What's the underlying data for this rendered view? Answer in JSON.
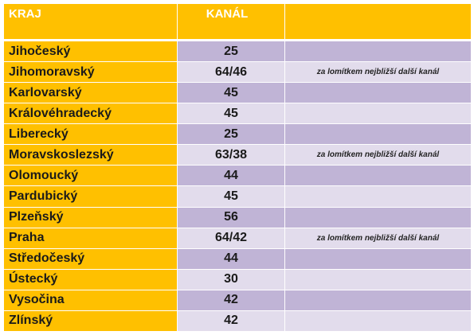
{
  "header": {
    "kraj": "KRAJ",
    "kanal": "KANÁL",
    "extra": ""
  },
  "rows": [
    {
      "kraj": "Jihočeský",
      "kanal": "25",
      "note": ""
    },
    {
      "kraj": "Jihomoravský",
      "kanal": "64/46",
      "note": "za lomítkem nejbližší další kanál"
    },
    {
      "kraj": "Karlovarský",
      "kanal": "45",
      "note": ""
    },
    {
      "kraj": "Královéhradecký",
      "kanal": "45",
      "note": ""
    },
    {
      "kraj": "Liberecký",
      "kanal": "25",
      "note": ""
    },
    {
      "kraj": "Moravskoslezský",
      "kanal": "63/38",
      "note": "za lomítkem nejbližší další kanál"
    },
    {
      "kraj": "Olomoucký",
      "kanal": "44",
      "note": ""
    },
    {
      "kraj": "Pardubický",
      "kanal": "45",
      "note": ""
    },
    {
      "kraj": "Plzeňský",
      "kanal": "56",
      "note": ""
    },
    {
      "kraj": "Praha",
      "kanal": "64/42",
      "note": "za lomítkem nejbližší další kanál"
    },
    {
      "kraj": "Středočeský",
      "kanal": "44",
      "note": ""
    },
    {
      "kraj": "Ústecký",
      "kanal": "30",
      "note": ""
    },
    {
      "kraj": "Vysočina",
      "kanal": "42",
      "note": ""
    },
    {
      "kraj": "Zlínský",
      "kanal": "42",
      "note": ""
    }
  ],
  "colors": {
    "header": "#FFC000",
    "region": "#FFC000",
    "row_dark": "#C0B4D6",
    "row_light": "#E2DCEC"
  }
}
